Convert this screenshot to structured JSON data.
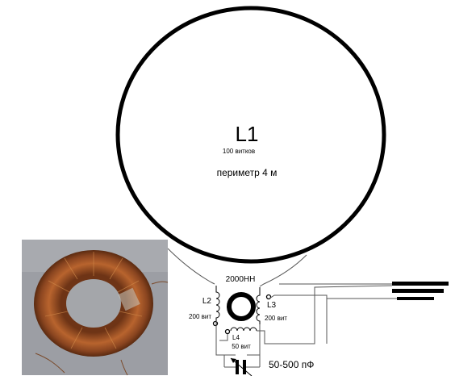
{
  "loop": {
    "label": "L1",
    "turns": "100 витков",
    "perimeter": "периметр 4 м"
  },
  "core": {
    "label": "2000НН"
  },
  "coils": {
    "l2": {
      "label": "L2",
      "turns": "200 вит"
    },
    "l3": {
      "label": "L3",
      "turns": "200 вит"
    },
    "l4": {
      "label": "L4",
      "turns": "50 вит"
    }
  },
  "capacitor": {
    "label": "50-500 пФ"
  },
  "photo": {
    "subject": "toroidal-coil-photo"
  },
  "colors": {
    "copper": "#a2552a",
    "photo_bg": "#9c9ea4",
    "line": "#000000"
  }
}
